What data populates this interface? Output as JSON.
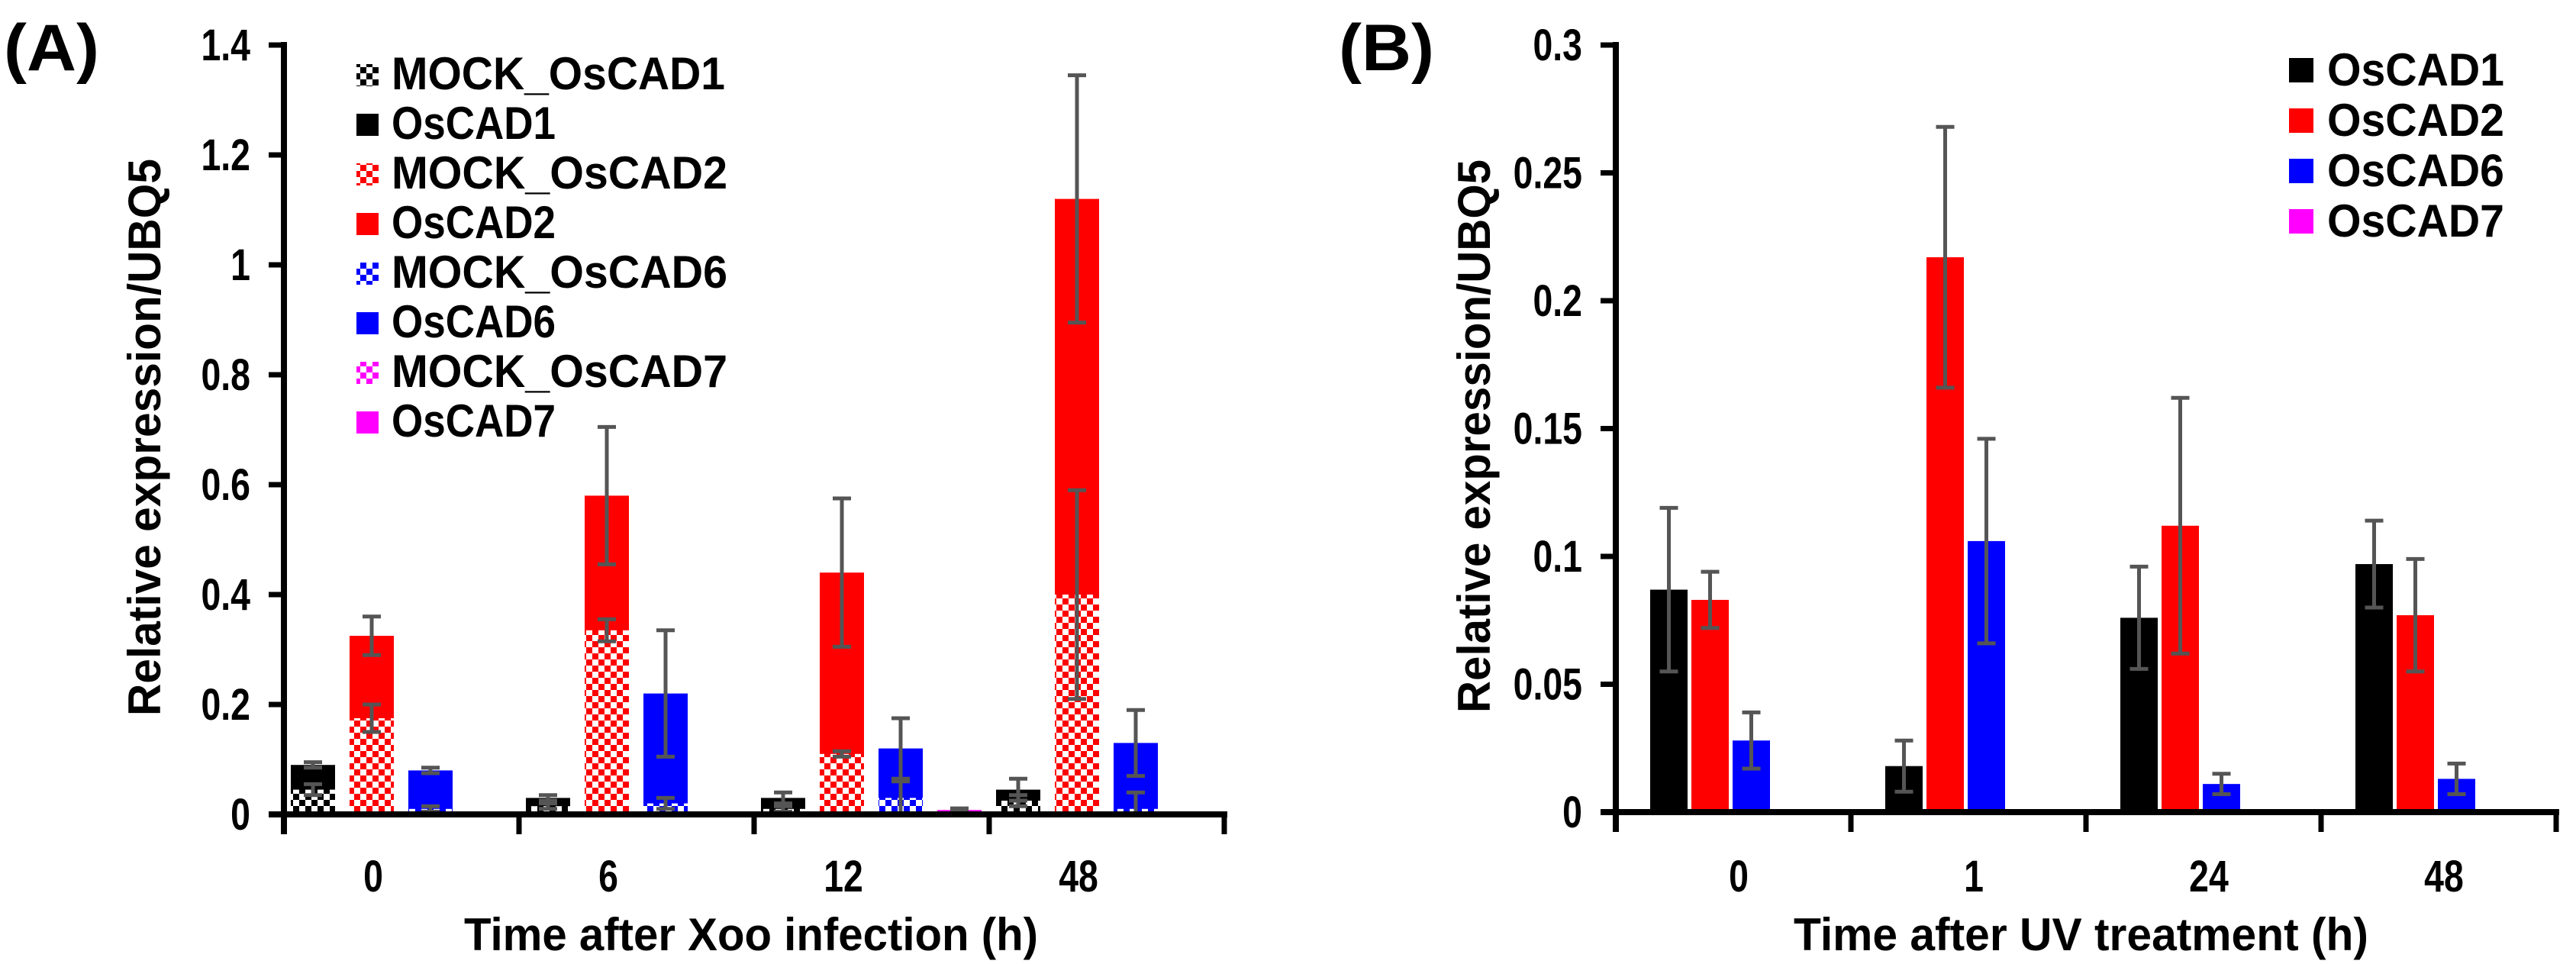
{
  "chart_data": [
    {
      "panel": "(A)",
      "type": "bar",
      "title": "",
      "xlabel": "Time after Xoo infection (h)",
      "ylabel": "Relative expression/UBQ5",
      "ylim": [
        0,
        1.4
      ],
      "yticks": [
        "0",
        "0.2",
        "0.4",
        "0.6",
        "0.8",
        "1",
        "1.2",
        "1.4"
      ],
      "categories": [
        "0",
        "6",
        "12",
        "48"
      ],
      "legend_position": "top-left",
      "legend": [
        "MOCK_OsCAD1",
        "OsCAD1",
        "MOCK_OsCAD2",
        "OsCAD2",
        "MOCK_OsCAD6",
        "OsCAD6",
        "MOCK_OsCAD7",
        "OsCAD7"
      ],
      "series": [
        {
          "name": "OsCAD1",
          "color": "#000000",
          "values": [
            0.09,
            0.03,
            0.03,
            0.045
          ],
          "err": [
            0.005,
            0.005,
            0.01,
            0.02
          ],
          "mock": {
            "name": "MOCK_OsCAD1",
            "values": [
              0.045,
              0.015,
              0.01,
              0.025
            ],
            "err": [
              0.01,
              0.005,
              0.005,
              0.01
            ]
          }
        },
        {
          "name": "OsCAD2",
          "color": "#ff0000",
          "values": [
            0.325,
            0.58,
            0.44,
            1.12
          ],
          "err": [
            0.035,
            0.125,
            0.135,
            0.225
          ],
          "mock": {
            "name": "MOCK_OsCAD2",
            "values": [
              0.175,
              0.335,
              0.11,
              0.4
            ],
            "err": [
              0.025,
              0.02,
              0.005,
              0.19
            ]
          }
        },
        {
          "name": "OsCAD6",
          "color": "#0000ff",
          "values": [
            0.08,
            0.22,
            0.12,
            0.13
          ],
          "err": [
            0.005,
            0.115,
            0.055,
            0.06
          ],
          "mock": {
            "name": "MOCK_OsCAD6",
            "values": [
              0.01,
              0.02,
              0.03,
              0.01
            ],
            "err": [
              0.005,
              0.01,
              0.03,
              0.03
            ]
          }
        },
        {
          "name": "OsCAD7",
          "color": "#ff00ff",
          "values": [
            0.001,
            0.001,
            0.008,
            0.001
          ],
          "err": [
            0,
            0,
            0.003,
            0
          ],
          "mock": {
            "name": "MOCK_OsCAD7",
            "values": [
              0.001,
              0.001,
              0.004,
              0.001
            ],
            "err": [
              0,
              0,
              0,
              0
            ]
          }
        }
      ]
    },
    {
      "panel": "(B)",
      "type": "bar",
      "title": "",
      "xlabel": "Time after UV treatment (h)",
      "ylabel": "Relative expression/UBQ5",
      "ylim": [
        0,
        0.3
      ],
      "yticks": [
        "0",
        "0.05",
        "0.1",
        "0.15",
        "0.2",
        "0.25",
        "0.3"
      ],
      "categories": [
        "0",
        "1",
        "24",
        "48"
      ],
      "legend_position": "top-right",
      "legend": [
        "OsCAD1",
        "OsCAD2",
        "OsCAD6",
        "OsCAD7"
      ],
      "series": [
        {
          "name": "OsCAD1",
          "color": "#000000",
          "values": [
            0.087,
            0.018,
            0.076,
            0.097
          ],
          "err": [
            0.032,
            0.01,
            0.02,
            0.017
          ]
        },
        {
          "name": "OsCAD2",
          "color": "#ff0000",
          "values": [
            0.083,
            0.217,
            0.112,
            0.077
          ],
          "err": [
            0.011,
            0.051,
            0.05,
            0.022
          ]
        },
        {
          "name": "OsCAD6",
          "color": "#0000ff",
          "values": [
            0.028,
            0.106,
            0.011,
            0.013
          ],
          "err": [
            0.011,
            0.04,
            0.004,
            0.006
          ]
        },
        {
          "name": "OsCAD7",
          "color": "#ff00ff",
          "values": [
            0.0005,
            0.0005,
            0.0005,
            0.0005
          ],
          "err": [
            0,
            0,
            0,
            0
          ]
        }
      ]
    }
  ]
}
